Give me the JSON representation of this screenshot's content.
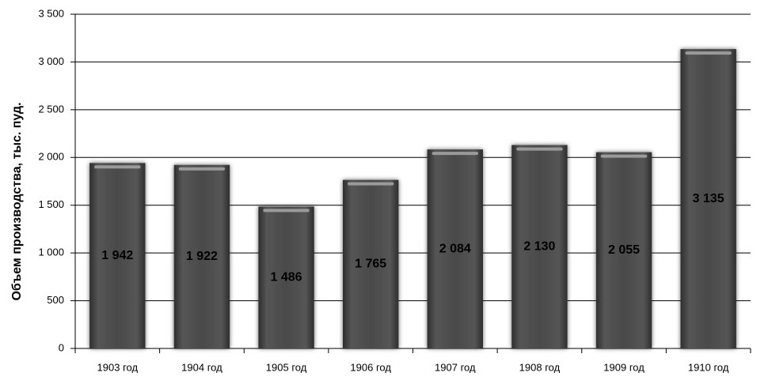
{
  "chart_data": {
    "type": "bar",
    "y_label": "Объем производства, тыс. пуд.",
    "categories": [
      "1903 год",
      "1904 год",
      "1905 год",
      "1906 год",
      "1907 год",
      "1908 год",
      "1909 год",
      "1910 год"
    ],
    "values": [
      1942,
      1922,
      1486,
      1765,
      2084,
      2130,
      2055,
      3135
    ],
    "value_labels": [
      "1 942",
      "1 922",
      "1 486",
      "1 765",
      "2 084",
      "2 130",
      "2 055",
      "3 135"
    ],
    "color": "#4a4a4a",
    "ylim": [
      0,
      3500
    ],
    "yticks": [
      0,
      500,
      {
        "value": 1000,
        "label": "1 000"
      },
      {
        "value": 1500,
        "label": "1 500"
      },
      {
        "value": 2000,
        "label": "2 000"
      },
      {
        "value": 2500,
        "label": "2 500"
      },
      {
        "value": 3000,
        "label": "3 000"
      },
      {
        "value": 3500,
        "label": "3 500"
      }
    ],
    "grid": true
  }
}
